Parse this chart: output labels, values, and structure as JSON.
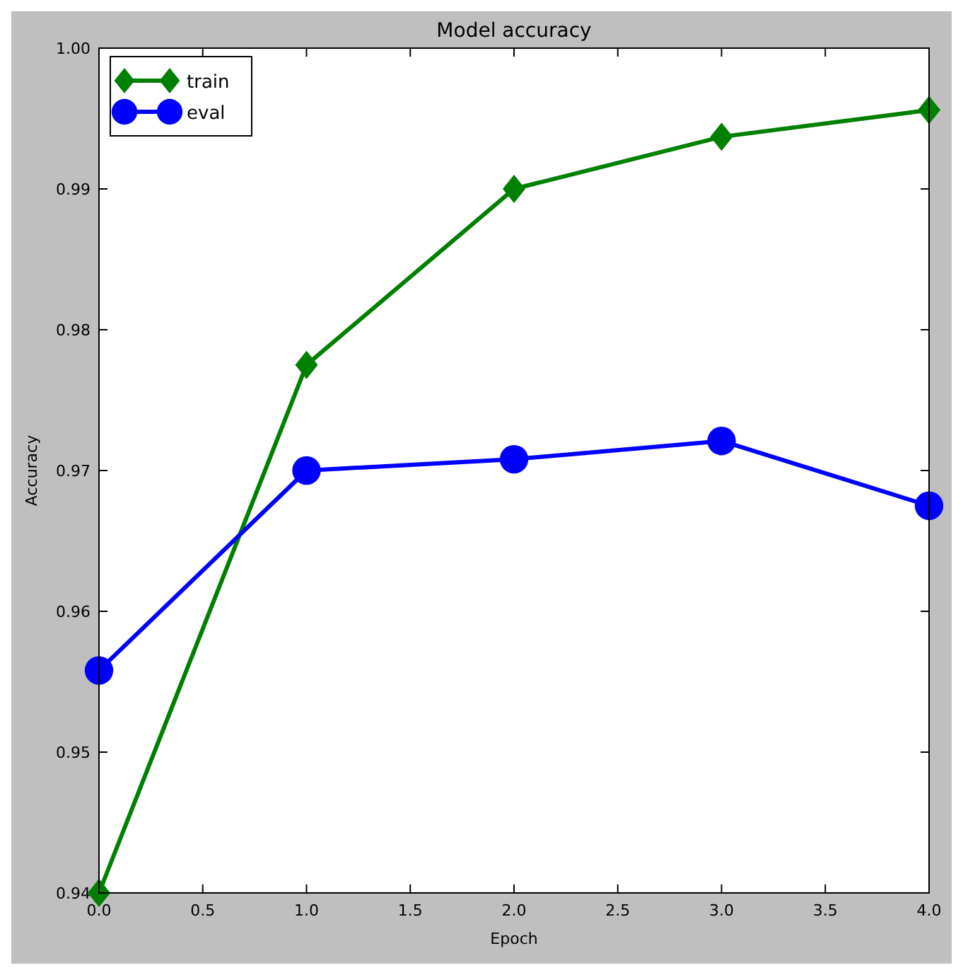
{
  "chart_data": {
    "type": "line",
    "title": "Model accuracy",
    "xlabel": "Epoch",
    "ylabel": "Accuracy",
    "x": [
      0,
      1,
      2,
      3,
      4
    ],
    "series": [
      {
        "name": "train",
        "color": "#008000",
        "marker": "diamond",
        "values": [
          0.94,
          0.9775,
          0.99,
          0.9937,
          0.9956
        ]
      },
      {
        "name": "eval",
        "color": "#0000ff",
        "marker": "circle",
        "values": [
          0.9558,
          0.97,
          0.9708,
          0.9721,
          0.9675
        ]
      }
    ],
    "xlim": [
      0,
      4
    ],
    "xticks": [
      {
        "value": 0,
        "label": "0.0"
      },
      {
        "value": 0.5,
        "label": "0.5"
      },
      {
        "value": 1,
        "label": "1.0"
      },
      {
        "value": 1.5,
        "label": "1.5"
      },
      {
        "value": 2,
        "label": "2.0"
      },
      {
        "value": 2.5,
        "label": "2.5"
      },
      {
        "value": 3,
        "label": "3.0"
      },
      {
        "value": 3.5,
        "label": "3.5"
      },
      {
        "value": 4,
        "label": "4.0"
      }
    ],
    "ylim": [
      0.94,
      1
    ],
    "yticks": [
      {
        "value": 0.94,
        "label": "0.94"
      },
      {
        "value": 0.95,
        "label": "0.95"
      },
      {
        "value": 0.96,
        "label": "0.96"
      },
      {
        "value": 0.97,
        "label": "0.97"
      },
      {
        "value": 0.98,
        "label": "0.98"
      },
      {
        "value": 0.99,
        "label": "0.99"
      },
      {
        "value": 1,
        "label": "1.00"
      }
    ],
    "grid": false,
    "legend": "top left",
    "line_style": "solid"
  }
}
